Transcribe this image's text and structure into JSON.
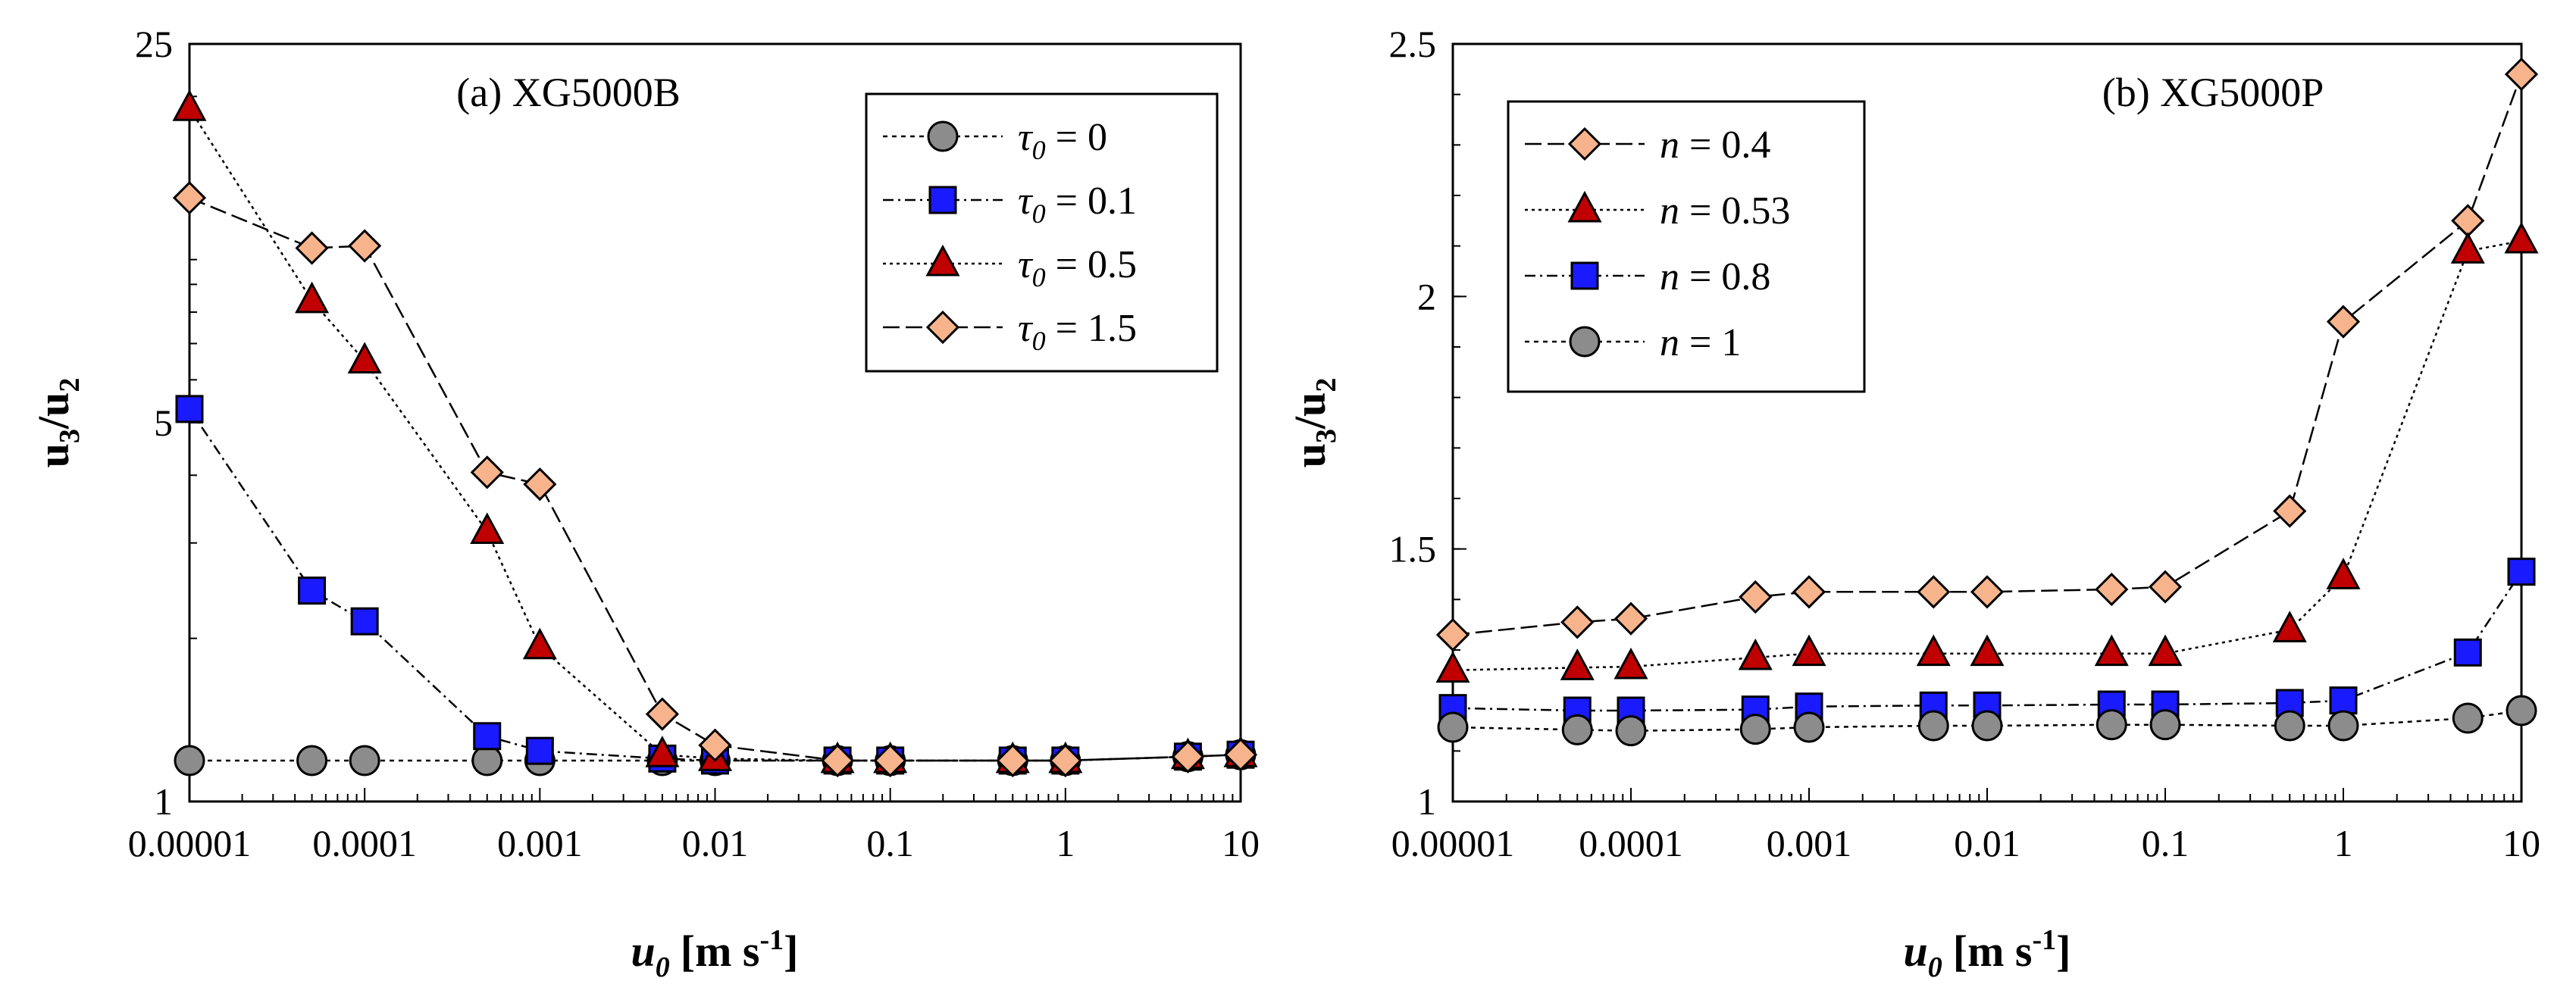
{
  "chart_data": [
    {
      "type": "scatter",
      "title": "(a) XG5000B",
      "x_scale": "log",
      "y_scale": "log",
      "xlim": [
        1e-05,
        10
      ],
      "ylim": [
        1,
        25
      ],
      "xlabel": {
        "main": "u",
        "sub": "0",
        "units": "[m s",
        "sup": "-1",
        "close": "]"
      },
      "ylabel": {
        "a": "u",
        "a_sub": "3",
        "slash": "/",
        "b": "u",
        "b_sub": "2"
      },
      "xticks": [
        {
          "v": 1e-05,
          "label": "0.00001"
        },
        {
          "v": 0.0001,
          "label": "0.0001"
        },
        {
          "v": 0.001,
          "label": "0.001"
        },
        {
          "v": 0.01,
          "label": "0.01"
        },
        {
          "v": 0.1,
          "label": "0.1"
        },
        {
          "v": 1,
          "label": "1"
        },
        {
          "v": 10,
          "label": "10"
        }
      ],
      "yticks": [
        {
          "v": 1,
          "label": "1"
        },
        {
          "v": 5,
          "label": "5"
        },
        {
          "v": 25,
          "label": "25"
        }
      ],
      "legend_position": "top-right",
      "series": [
        {
          "name_sym": "τ",
          "name_sub": "0",
          "name_val": " = 0",
          "marker": "circle",
          "fill": "#8c8c8c",
          "dash": "6 6",
          "x": [
            1e-05,
            5e-05,
            0.0001,
            0.0005,
            0.001,
            0.005,
            0.01,
            0.05,
            0.1,
            0.5,
            1,
            5,
            10
          ],
          "y": [
            1.19,
            1.19,
            1.19,
            1.19,
            1.19,
            1.19,
            1.19,
            1.19,
            1.19,
            1.19,
            1.19,
            1.21,
            1.22
          ]
        },
        {
          "name_sym": "τ",
          "name_sub": "0",
          "name_val": " = 0.1",
          "marker": "square",
          "fill": "#1a1aff",
          "dash": "14 6 3 6",
          "x": [
            1e-05,
            5e-05,
            0.0001,
            0.0005,
            0.001,
            0.005,
            0.01,
            0.05,
            0.1,
            0.5,
            1,
            5,
            10
          ],
          "y": [
            5.3,
            2.45,
            2.15,
            1.32,
            1.24,
            1.2,
            1.19,
            1.19,
            1.19,
            1.19,
            1.19,
            1.21,
            1.22
          ]
        },
        {
          "name_sym": "τ",
          "name_sub": "0",
          "name_val": " = 0.5",
          "marker": "triangle",
          "fill": "#c00000",
          "dash": "4 5",
          "x": [
            1e-05,
            5e-05,
            0.0001,
            0.0005,
            0.001,
            0.005,
            0.01,
            0.05,
            0.1,
            0.5,
            1,
            5,
            10
          ],
          "y": [
            19.0,
            8.4,
            6.5,
            3.15,
            1.93,
            1.22,
            1.2,
            1.19,
            1.19,
            1.19,
            1.19,
            1.21,
            1.22
          ]
        },
        {
          "name_sym": "τ",
          "name_sub": "0",
          "name_val": " = 1.5",
          "marker": "diamond",
          "fill": "#f7b48c",
          "dash": "22 8",
          "x": [
            1e-05,
            5e-05,
            0.0001,
            0.0005,
            0.001,
            0.005,
            0.01,
            0.05,
            0.1,
            0.5,
            1,
            5,
            10
          ],
          "y": [
            13.0,
            10.5,
            10.6,
            4.05,
            3.85,
            1.45,
            1.27,
            1.19,
            1.19,
            1.19,
            1.19,
            1.21,
            1.22
          ]
        }
      ]
    },
    {
      "type": "scatter",
      "title": "(b) XG5000P",
      "x_scale": "log",
      "y_scale": "linear",
      "xlim": [
        1e-05,
        10
      ],
      "ylim": [
        1,
        2.5
      ],
      "xlabel": {
        "main": "u",
        "sub": "0",
        "units": "[m s",
        "sup": "-1",
        "close": "]"
      },
      "ylabel": {
        "a": "u",
        "a_sub": "3",
        "slash": "/",
        "b": "u",
        "b_sub": "2"
      },
      "xticks": [
        {
          "v": 1e-05,
          "label": "0.00001"
        },
        {
          "v": 0.0001,
          "label": "0.0001"
        },
        {
          "v": 0.001,
          "label": "0.001"
        },
        {
          "v": 0.01,
          "label": "0.01"
        },
        {
          "v": 0.1,
          "label": "0.1"
        },
        {
          "v": 1,
          "label": "1"
        },
        {
          "v": 10,
          "label": "10"
        }
      ],
      "yticks": [
        {
          "v": 1,
          "label": "1"
        },
        {
          "v": 1.5,
          "label": "1.5"
        },
        {
          "v": 2,
          "label": "2"
        },
        {
          "v": 2.5,
          "label": "2.5"
        }
      ],
      "legend_position": "top-left",
      "series": [
        {
          "name_sym": "n",
          "name_sub": "",
          "name_val": " = 0.4",
          "marker": "diamond",
          "fill": "#f7b48c",
          "dash": "22 8",
          "x": [
            1e-05,
            5e-05,
            0.0001,
            0.0005,
            0.001,
            0.005,
            0.01,
            0.05,
            0.1,
            0.5,
            1,
            5,
            10
          ],
          "y": [
            1.33,
            1.355,
            1.362,
            1.405,
            1.415,
            1.415,
            1.415,
            1.42,
            1.425,
            1.575,
            1.95,
            2.15,
            2.44
          ]
        },
        {
          "name_sym": "n",
          "name_sub": "",
          "name_val": " = 0.53",
          "marker": "triangle",
          "fill": "#c00000",
          "dash": "4 5",
          "x": [
            1e-05,
            5e-05,
            0.0001,
            0.0005,
            0.001,
            0.005,
            0.01,
            0.05,
            0.1,
            0.5,
            1,
            5,
            10
          ],
          "y": [
            1.26,
            1.265,
            1.267,
            1.285,
            1.293,
            1.293,
            1.293,
            1.293,
            1.293,
            1.34,
            1.445,
            2.09,
            2.11
          ]
        },
        {
          "name_sym": "n",
          "name_sub": "",
          "name_val": " = 0.8",
          "marker": "square",
          "fill": "#1a1aff",
          "dash": "14 6 3 6",
          "x": [
            1e-05,
            5e-05,
            0.0001,
            0.0005,
            0.001,
            0.005,
            0.01,
            0.05,
            0.1,
            0.5,
            1,
            5,
            10
          ],
          "y": [
            1.185,
            1.18,
            1.18,
            1.182,
            1.188,
            1.19,
            1.19,
            1.192,
            1.192,
            1.195,
            1.2,
            1.295,
            1.455
          ]
        },
        {
          "name_sym": "n",
          "name_sub": "",
          "name_val": " = 1",
          "marker": "circle",
          "fill": "#8c8c8c",
          "dash": "6 6",
          "x": [
            1e-05,
            5e-05,
            0.0001,
            0.0005,
            0.001,
            0.005,
            0.01,
            0.05,
            0.1,
            0.5,
            1,
            5,
            10
          ],
          "y": [
            1.147,
            1.142,
            1.14,
            1.143,
            1.147,
            1.15,
            1.15,
            1.152,
            1.152,
            1.15,
            1.15,
            1.165,
            1.18
          ]
        }
      ]
    }
  ]
}
